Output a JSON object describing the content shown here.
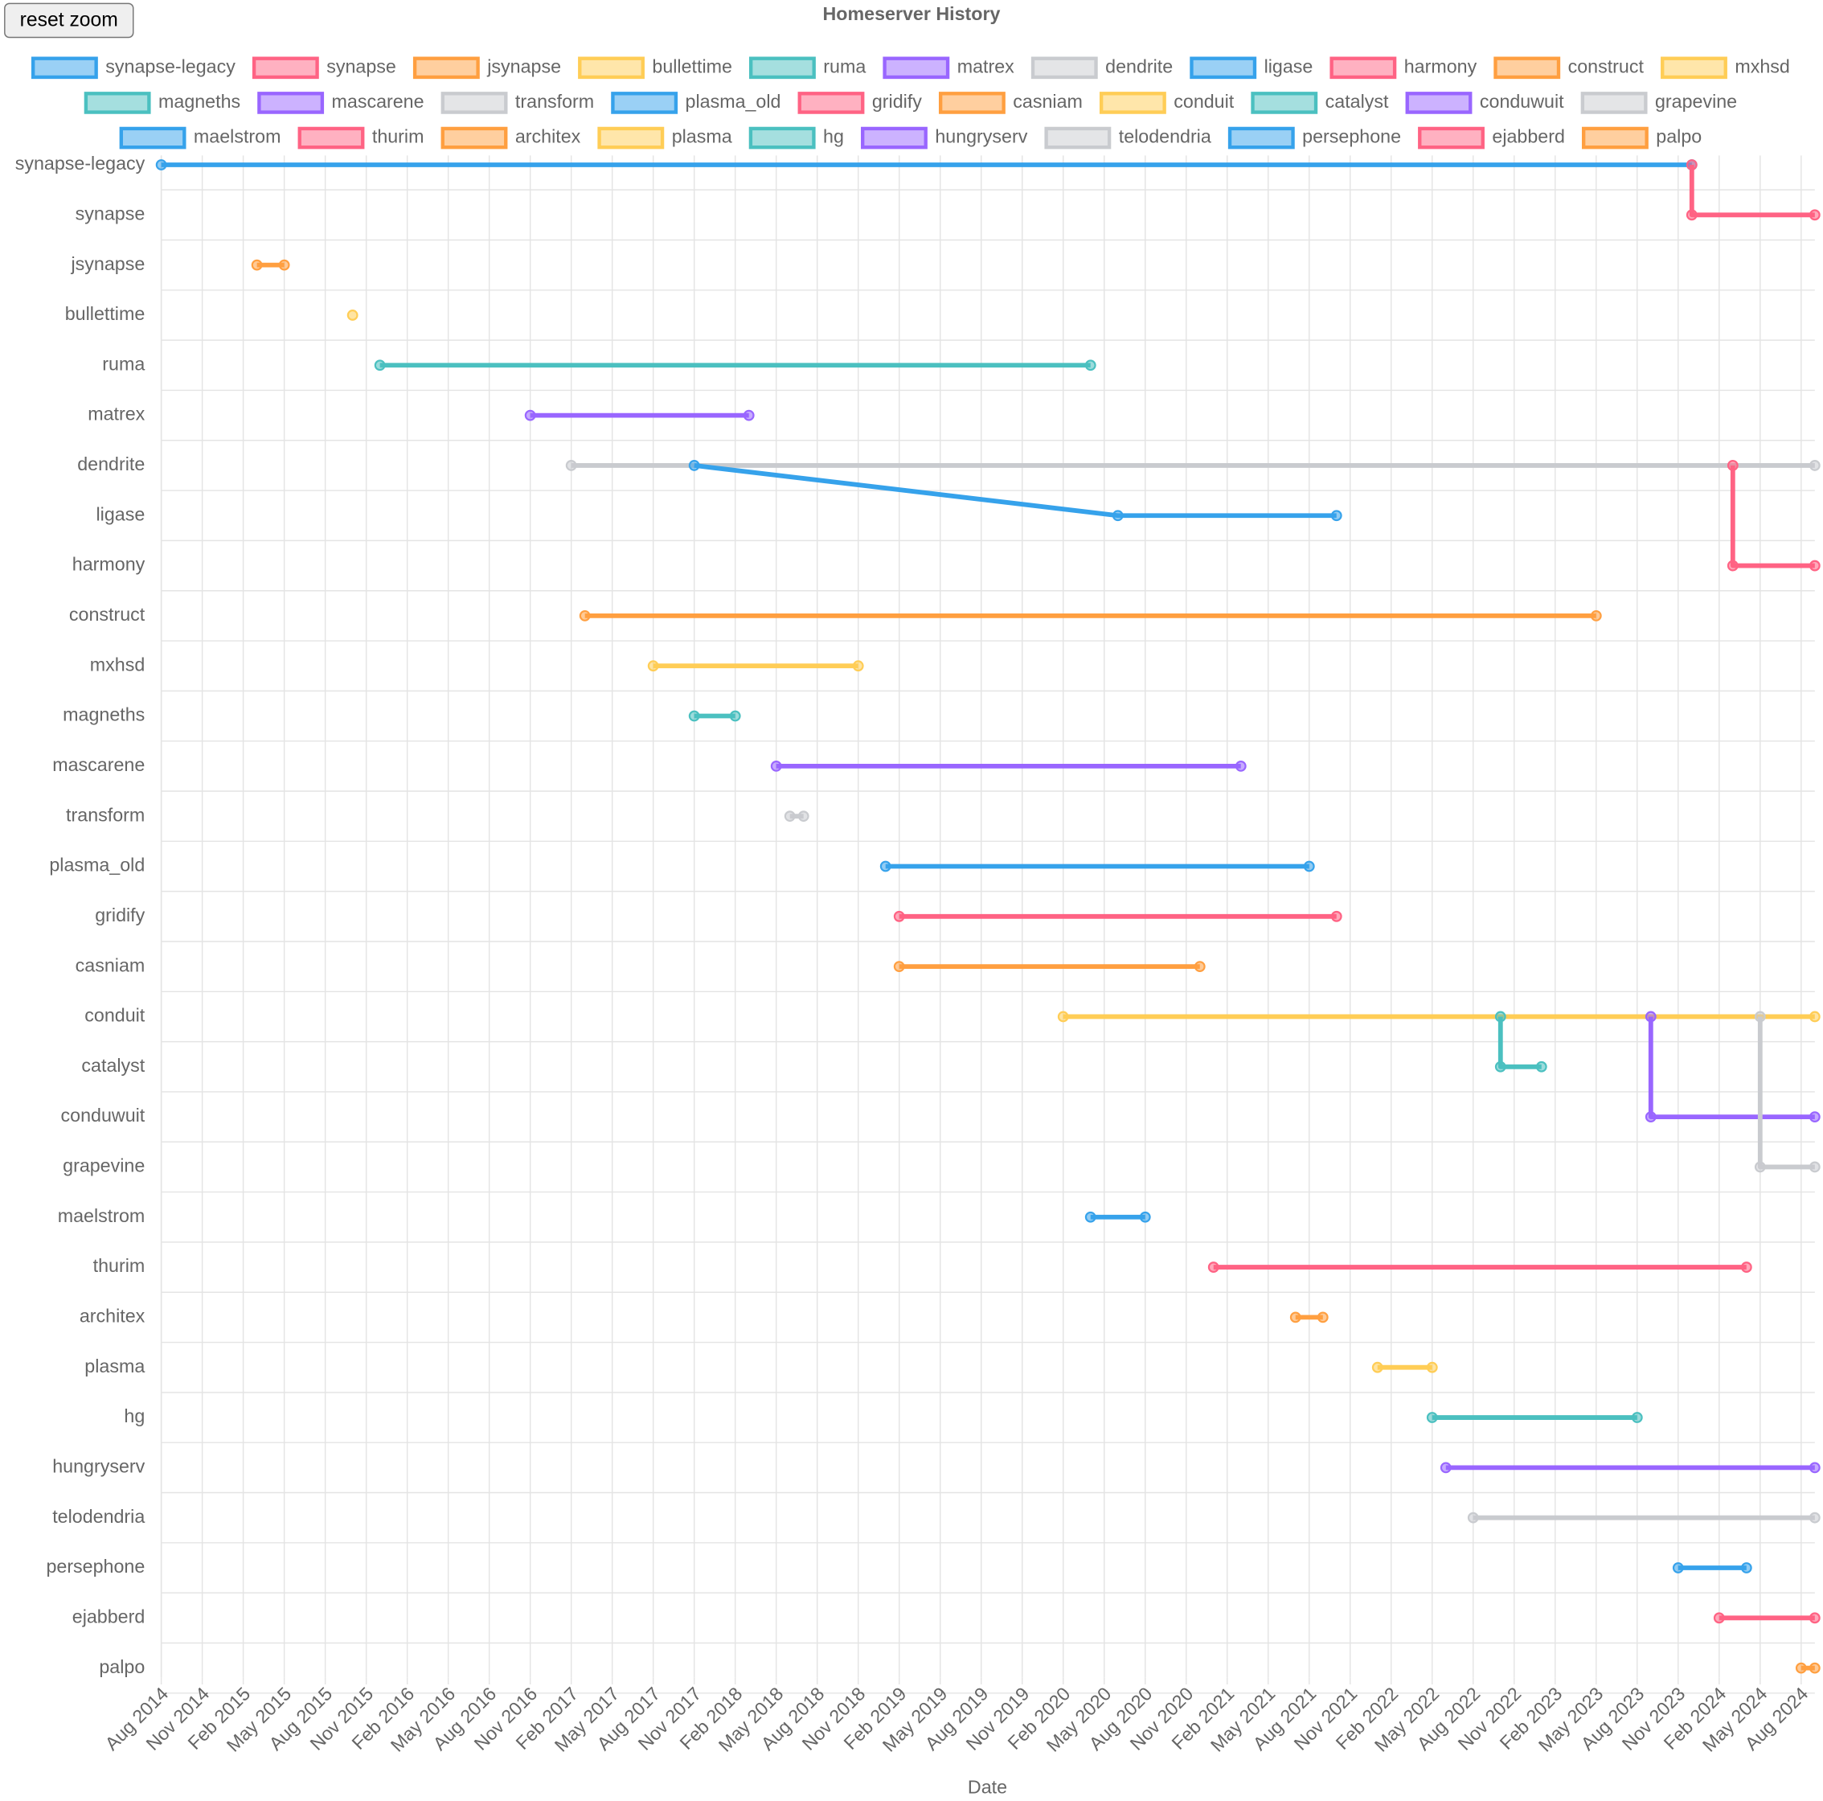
{
  "controls": {
    "reset_zoom": "reset zoom"
  },
  "chart_data": {
    "type": "timeline",
    "title": "Homeserver History",
    "x_label": "Date",
    "categories": [
      "synapse-legacy",
      "synapse",
      "jsynapse",
      "bullettime",
      "ruma",
      "matrex",
      "dendrite",
      "ligase",
      "harmony",
      "construct",
      "mxhsd",
      "magneths",
      "mascarene",
      "transform",
      "plasma_old",
      "gridify",
      "casniam",
      "conduit",
      "catalyst",
      "conduwuit",
      "grapevine",
      "maelstrom",
      "thurim",
      "architex",
      "plasma",
      "hg",
      "hungryserv",
      "telodendria",
      "persephone",
      "ejabberd",
      "palpo"
    ],
    "xlim": [
      "2014-08",
      "2024-09"
    ],
    "xticks": [
      {
        "value": "2014-08",
        "label": "Aug 2014"
      },
      {
        "value": "2014-11",
        "label": "Nov 2014"
      },
      {
        "value": "2015-02",
        "label": "Feb 2015"
      },
      {
        "value": "2015-05",
        "label": "May 2015"
      },
      {
        "value": "2015-08",
        "label": "Aug 2015"
      },
      {
        "value": "2015-11",
        "label": "Nov 2015"
      },
      {
        "value": "2016-02",
        "label": "Feb 2016"
      },
      {
        "value": "2016-05",
        "label": "May 2016"
      },
      {
        "value": "2016-08",
        "label": "Aug 2016"
      },
      {
        "value": "2016-11",
        "label": "Nov 2016"
      },
      {
        "value": "2017-02",
        "label": "Feb 2017"
      },
      {
        "value": "2017-05",
        "label": "May 2017"
      },
      {
        "value": "2017-08",
        "label": "Aug 2017"
      },
      {
        "value": "2017-11",
        "label": "Nov 2017"
      },
      {
        "value": "2018-02",
        "label": "Feb 2018"
      },
      {
        "value": "2018-05",
        "label": "May 2018"
      },
      {
        "value": "2018-08",
        "label": "Aug 2018"
      },
      {
        "value": "2018-11",
        "label": "Nov 2018"
      },
      {
        "value": "2019-02",
        "label": "Feb 2019"
      },
      {
        "value": "2019-05",
        "label": "May 2019"
      },
      {
        "value": "2019-08",
        "label": "Aug 2019"
      },
      {
        "value": "2019-11",
        "label": "Nov 2019"
      },
      {
        "value": "2020-02",
        "label": "Feb 2020"
      },
      {
        "value": "2020-05",
        "label": "May 2020"
      },
      {
        "value": "2020-08",
        "label": "Aug 2020"
      },
      {
        "value": "2020-11",
        "label": "Nov 2020"
      },
      {
        "value": "2021-02",
        "label": "Feb 2021"
      },
      {
        "value": "2021-05",
        "label": "May 2021"
      },
      {
        "value": "2021-08",
        "label": "Aug 2021"
      },
      {
        "value": "2021-11",
        "label": "Nov 2021"
      },
      {
        "value": "2022-02",
        "label": "Feb 2022"
      },
      {
        "value": "2022-05",
        "label": "May 2022"
      },
      {
        "value": "2022-08",
        "label": "Aug 2022"
      },
      {
        "value": "2022-11",
        "label": "Nov 2022"
      },
      {
        "value": "2023-02",
        "label": "Feb 2023"
      },
      {
        "value": "2023-05",
        "label": "May 2023"
      },
      {
        "value": "2023-08",
        "label": "Aug 2023"
      },
      {
        "value": "2023-11",
        "label": "Nov 2023"
      },
      {
        "value": "2024-02",
        "label": "Feb 2024"
      },
      {
        "value": "2024-05",
        "label": "May 2024"
      },
      {
        "value": "2024-08",
        "label": "Aug 2024"
      }
    ],
    "grid": true,
    "series": [
      {
        "name": "synapse-legacy",
        "color": "#36a2eb",
        "x": [
          "2014-08",
          "2023-12"
        ],
        "y": [
          "synapse-legacy",
          "synapse-legacy"
        ]
      },
      {
        "name": "synapse",
        "color": "#ff6384",
        "x": [
          "2023-12",
          "2023-12",
          "2024-09"
        ],
        "y": [
          "synapse-legacy",
          "synapse",
          "synapse"
        ]
      },
      {
        "name": "jsynapse",
        "color": "#ff9f40",
        "x": [
          "2015-03",
          "2015-05"
        ],
        "y": [
          "jsynapse",
          "jsynapse"
        ]
      },
      {
        "name": "bullettime",
        "color": "#ffcd56",
        "x": [
          "2015-10"
        ],
        "y": [
          "bullettime"
        ]
      },
      {
        "name": "ruma",
        "color": "#4bc0c0",
        "x": [
          "2015-12",
          "2020-04"
        ],
        "y": [
          "ruma",
          "ruma"
        ]
      },
      {
        "name": "matrex",
        "color": "#9966ff",
        "x": [
          "2016-11",
          "2018-03"
        ],
        "y": [
          "matrex",
          "matrex"
        ]
      },
      {
        "name": "dendrite",
        "color": "#c9cbcf",
        "x": [
          "2017-02",
          "2024-09"
        ],
        "y": [
          "dendrite",
          "dendrite"
        ]
      },
      {
        "name": "ligase",
        "color": "#36a2eb",
        "x": [
          "2017-11",
          "2020-06",
          "2021-10"
        ],
        "y": [
          "dendrite",
          "ligase",
          "ligase"
        ]
      },
      {
        "name": "harmony",
        "color": "#ff6384",
        "x": [
          "2024-03",
          "2024-03",
          "2024-09"
        ],
        "y": [
          "dendrite",
          "harmony",
          "harmony"
        ]
      },
      {
        "name": "construct",
        "color": "#ff9f40",
        "x": [
          "2017-03",
          "2023-05"
        ],
        "y": [
          "construct",
          "construct"
        ]
      },
      {
        "name": "mxhsd",
        "color": "#ffcd56",
        "x": [
          "2017-08",
          "2018-11"
        ],
        "y": [
          "mxhsd",
          "mxhsd"
        ]
      },
      {
        "name": "magneths",
        "color": "#4bc0c0",
        "x": [
          "2017-11",
          "2018-02"
        ],
        "y": [
          "magneths",
          "magneths"
        ]
      },
      {
        "name": "mascarene",
        "color": "#9966ff",
        "x": [
          "2018-05",
          "2021-03"
        ],
        "y": [
          "mascarene",
          "mascarene"
        ]
      },
      {
        "name": "transform",
        "color": "#c9cbcf",
        "x": [
          "2018-06",
          "2018-07"
        ],
        "y": [
          "transform",
          "transform"
        ]
      },
      {
        "name": "plasma_old",
        "color": "#36a2eb",
        "x": [
          "2019-01",
          "2021-08"
        ],
        "y": [
          "plasma_old",
          "plasma_old"
        ]
      },
      {
        "name": "gridify",
        "color": "#ff6384",
        "x": [
          "2019-02",
          "2021-10"
        ],
        "y": [
          "gridify",
          "gridify"
        ]
      },
      {
        "name": "casniam",
        "color": "#ff9f40",
        "x": [
          "2019-02",
          "2020-12"
        ],
        "y": [
          "casniam",
          "casniam"
        ]
      },
      {
        "name": "conduit",
        "color": "#ffcd56",
        "x": [
          "2020-02",
          "2024-09"
        ],
        "y": [
          "conduit",
          "conduit"
        ]
      },
      {
        "name": "catalyst",
        "color": "#4bc0c0",
        "x": [
          "2022-10",
          "2022-10",
          "2023-01"
        ],
        "y": [
          "conduit",
          "catalyst",
          "catalyst"
        ]
      },
      {
        "name": "conduwuit",
        "color": "#9966ff",
        "x": [
          "2023-09",
          "2023-09",
          "2024-09"
        ],
        "y": [
          "conduit",
          "conduwuit",
          "conduwuit"
        ]
      },
      {
        "name": "grapevine",
        "color": "#c9cbcf",
        "x": [
          "2024-05",
          "2024-05",
          "2024-09"
        ],
        "y": [
          "conduit",
          "grapevine",
          "grapevine"
        ]
      },
      {
        "name": "maelstrom",
        "color": "#36a2eb",
        "x": [
          "2020-04",
          "2020-08"
        ],
        "y": [
          "maelstrom",
          "maelstrom"
        ]
      },
      {
        "name": "thurim",
        "color": "#ff6384",
        "x": [
          "2021-01",
          "2024-04"
        ],
        "y": [
          "thurim",
          "thurim"
        ]
      },
      {
        "name": "architex",
        "color": "#ff9f40",
        "x": [
          "2021-07",
          "2021-09"
        ],
        "y": [
          "architex",
          "architex"
        ]
      },
      {
        "name": "plasma",
        "color": "#ffcd56",
        "x": [
          "2022-01",
          "2022-05"
        ],
        "y": [
          "plasma",
          "plasma"
        ]
      },
      {
        "name": "hg",
        "color": "#4bc0c0",
        "x": [
          "2022-05",
          "2023-08"
        ],
        "y": [
          "hg",
          "hg"
        ]
      },
      {
        "name": "hungryserv",
        "color": "#9966ff",
        "x": [
          "2022-06",
          "2024-09"
        ],
        "y": [
          "hungryserv",
          "hungryserv"
        ]
      },
      {
        "name": "telodendria",
        "color": "#c9cbcf",
        "x": [
          "2022-08",
          "2024-09"
        ],
        "y": [
          "telodendria",
          "telodendria"
        ]
      },
      {
        "name": "persephone",
        "color": "#36a2eb",
        "x": [
          "2023-11",
          "2024-04"
        ],
        "y": [
          "persephone",
          "persephone"
        ]
      },
      {
        "name": "ejabberd",
        "color": "#ff6384",
        "x": [
          "2024-02",
          "2024-09"
        ],
        "y": [
          "ejabberd",
          "ejabberd"
        ]
      },
      {
        "name": "palpo",
        "color": "#ff9f40",
        "x": [
          "2024-08",
          "2024-09"
        ],
        "y": [
          "palpo",
          "palpo"
        ]
      }
    ]
  }
}
